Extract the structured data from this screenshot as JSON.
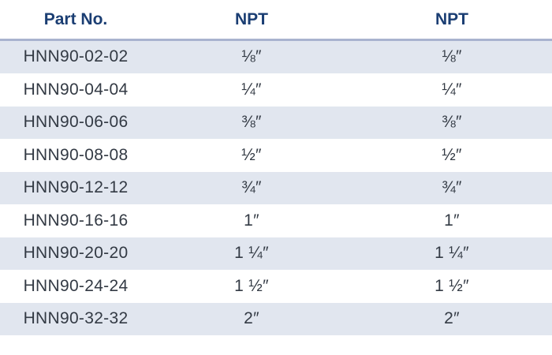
{
  "table": {
    "headers": [
      "Part No.",
      "NPT",
      "NPT"
    ],
    "rows": [
      {
        "part": "HNN90-02-02",
        "npt1": "⅛″",
        "npt2": "⅛″"
      },
      {
        "part": "HNN90-04-04",
        "npt1": "¼″",
        "npt2": "¼″"
      },
      {
        "part": "HNN90-06-06",
        "npt1": "⅜″",
        "npt2": "⅜″"
      },
      {
        "part": "HNN90-08-08",
        "npt1": "½″",
        "npt2": "½″"
      },
      {
        "part": "HNN90-12-12",
        "npt1": "¾″",
        "npt2": "¾″"
      },
      {
        "part": "HNN90-16-16",
        "npt1": "1″",
        "npt2": "1″"
      },
      {
        "part": "HNN90-20-20",
        "npt1": "1 ¼″",
        "npt2": "1 ¼″"
      },
      {
        "part": "HNN90-24-24",
        "npt1": "1 ½″",
        "npt2": "1 ½″"
      },
      {
        "part": "HNN90-32-32",
        "npt1": "2″",
        "npt2": "2″"
      }
    ]
  },
  "colors": {
    "header_text": "#1b3e73",
    "header_rule": "#a9b3cf",
    "row_shade": "#e1e6ef",
    "body_text": "#333a44"
  }
}
